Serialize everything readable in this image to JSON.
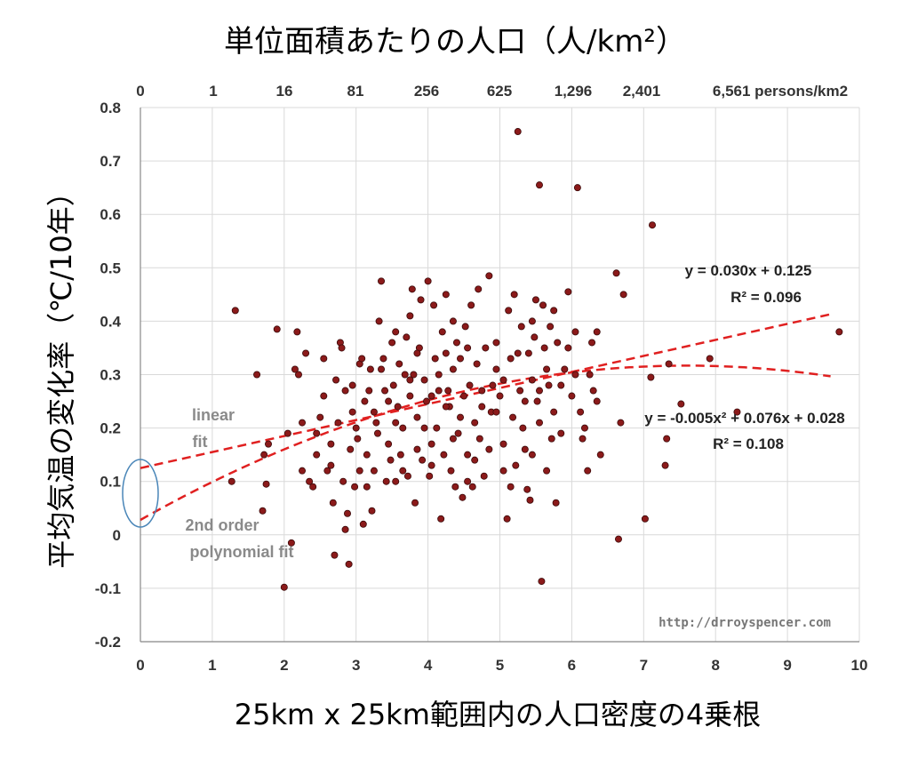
{
  "chart_data": {
    "type": "scatter",
    "title": "単位面積あたりの人口",
    "title_unit": "（人/km²）",
    "xlabel": "25km x 25km範囲内の人口密度の4乗根",
    "ylabel": "平均気温の変化率（℃/10年）",
    "xlim": [
      0,
      10
    ],
    "ylim": [
      -0.2,
      0.8
    ],
    "x_ticks": [
      "0",
      "1",
      "2",
      "3",
      "4",
      "5",
      "6",
      "7",
      "8",
      "9",
      "10"
    ],
    "y_ticks": [
      "-0.2",
      "-0.1",
      "0",
      "0.1",
      "0.2",
      "0.3",
      "0.4",
      "0.5",
      "0.6",
      "0.7",
      "0.8"
    ],
    "top_axis_ticks": [
      "0",
      "1",
      "16",
      "81",
      "256",
      "625",
      "1,296",
      "2,401",
      "6,561 persons/km2"
    ],
    "grid": true,
    "marker_color": "#8B1A1A",
    "fit_color": "#E02020",
    "annotation_color": "#4a86b8",
    "linear_fit": {
      "slope": 0.03,
      "intercept": 0.125,
      "equation": "y = 0.030x + 0.125",
      "r2": "R² = 0.096",
      "label_line1": "linear",
      "label_line2": "fit"
    },
    "poly_fit": {
      "a": -0.005,
      "b": 0.076,
      "c": 0.028,
      "equation": "y = -0.005x² + 0.076x + 0.028",
      "r2": "R² = 0.108",
      "label_line1": "2nd order",
      "label_line2": "polynomial fit"
    },
    "credit": "http://drroyspencer.com",
    "points": [
      [
        1.32,
        0.42
      ],
      [
        1.27,
        0.1
      ],
      [
        1.62,
        0.3
      ],
      [
        1.7,
        0.045
      ],
      [
        1.72,
        0.15
      ],
      [
        1.75,
        0.095
      ],
      [
        1.78,
        0.17
      ],
      [
        1.9,
        0.385
      ],
      [
        2.0,
        -0.098
      ],
      [
        2.1,
        -0.015
      ],
      [
        2.05,
        0.19
      ],
      [
        2.15,
        0.31
      ],
      [
        2.18,
        0.38
      ],
      [
        2.2,
        0.3
      ],
      [
        2.25,
        0.21
      ],
      [
        2.3,
        0.34
      ],
      [
        2.35,
        0.1
      ],
      [
        2.4,
        0.09
      ],
      [
        2.45,
        0.15
      ],
      [
        2.5,
        0.22
      ],
      [
        2.55,
        0.26
      ],
      [
        2.6,
        0.12
      ],
      [
        2.65,
        0.13
      ],
      [
        2.68,
        0.06
      ],
      [
        2.7,
        -0.038
      ],
      [
        2.72,
        0.29
      ],
      [
        2.75,
        0.21
      ],
      [
        2.78,
        0.36
      ],
      [
        2.8,
        0.35
      ],
      [
        2.82,
        0.1
      ],
      [
        2.85,
        0.01
      ],
      [
        2.88,
        0.04
      ],
      [
        2.9,
        -0.055
      ],
      [
        2.92,
        0.16
      ],
      [
        2.95,
        0.23
      ],
      [
        2.98,
        0.09
      ],
      [
        3.0,
        0.2
      ],
      [
        3.02,
        0.18
      ],
      [
        3.05,
        0.32
      ],
      [
        3.08,
        0.33
      ],
      [
        3.1,
        0.02
      ],
      [
        3.12,
        0.25
      ],
      [
        3.15,
        0.15
      ],
      [
        3.18,
        0.27
      ],
      [
        3.2,
        0.31
      ],
      [
        3.22,
        0.045
      ],
      [
        3.25,
        0.12
      ],
      [
        3.28,
        0.21
      ],
      [
        3.3,
        0.19
      ],
      [
        3.32,
        0.4
      ],
      [
        3.35,
        0.475
      ],
      [
        3.38,
        0.33
      ],
      [
        3.4,
        0.27
      ],
      [
        3.42,
        0.1
      ],
      [
        3.45,
        0.25
      ],
      [
        3.48,
        0.14
      ],
      [
        3.5,
        0.36
      ],
      [
        3.52,
        0.28
      ],
      [
        3.55,
        0.38
      ],
      [
        3.58,
        0.24
      ],
      [
        3.6,
        0.32
      ],
      [
        3.62,
        0.15
      ],
      [
        3.65,
        0.2
      ],
      [
        3.68,
        0.3
      ],
      [
        3.7,
        0.37
      ],
      [
        3.72,
        0.11
      ],
      [
        3.75,
        0.26
      ],
      [
        3.78,
        0.46
      ],
      [
        3.8,
        0.3
      ],
      [
        3.82,
        0.06
      ],
      [
        3.85,
        0.22
      ],
      [
        3.88,
        0.35
      ],
      [
        3.9,
        0.44
      ],
      [
        3.92,
        0.14
      ],
      [
        3.95,
        0.29
      ],
      [
        3.98,
        0.25
      ],
      [
        4.0,
        0.475
      ],
      [
        4.02,
        0.11
      ],
      [
        4.05,
        0.17
      ],
      [
        4.08,
        0.43
      ],
      [
        4.1,
        0.33
      ],
      [
        4.12,
        0.2
      ],
      [
        4.15,
        0.27
      ],
      [
        4.18,
        0.03
      ],
      [
        4.2,
        0.38
      ],
      [
        4.22,
        0.15
      ],
      [
        4.25,
        0.45
      ],
      [
        4.28,
        0.27
      ],
      [
        4.3,
        0.24
      ],
      [
        4.32,
        0.12
      ],
      [
        4.35,
        0.31
      ],
      [
        4.38,
        0.09
      ],
      [
        4.4,
        0.36
      ],
      [
        4.42,
        0.19
      ],
      [
        4.45,
        0.33
      ],
      [
        4.48,
        0.07
      ],
      [
        4.5,
        0.26
      ],
      [
        4.52,
        0.39
      ],
      [
        4.55,
        0.15
      ],
      [
        4.58,
        0.28
      ],
      [
        4.6,
        0.43
      ],
      [
        4.62,
        0.09
      ],
      [
        4.65,
        0.21
      ],
      [
        4.68,
        0.32
      ],
      [
        4.7,
        0.46
      ],
      [
        4.72,
        0.18
      ],
      [
        4.75,
        0.27
      ],
      [
        4.78,
        0.11
      ],
      [
        4.8,
        0.35
      ],
      [
        4.85,
        0.485
      ],
      [
        4.88,
        0.23
      ],
      [
        4.9,
        0.28
      ],
      [
        4.95,
        0.31
      ],
      [
        5.0,
        0.26
      ],
      [
        5.05,
        0.17
      ],
      [
        5.1,
        0.03
      ],
      [
        5.12,
        0.42
      ],
      [
        5.15,
        0.33
      ],
      [
        5.18,
        0.22
      ],
      [
        5.2,
        0.45
      ],
      [
        5.22,
        0.13
      ],
      [
        5.25,
        0.755
      ],
      [
        5.28,
        0.27
      ],
      [
        5.3,
        0.39
      ],
      [
        5.32,
        0.2
      ],
      [
        5.35,
        0.16
      ],
      [
        5.38,
        0.085
      ],
      [
        5.4,
        0.34
      ],
      [
        5.42,
        0.065
      ],
      [
        5.45,
        0.29
      ],
      [
        5.48,
        0.37
      ],
      [
        5.5,
        0.44
      ],
      [
        5.52,
        0.25
      ],
      [
        5.55,
        0.655
      ],
      [
        5.58,
        -0.087
      ],
      [
        5.6,
        0.43
      ],
      [
        5.62,
        0.35
      ],
      [
        5.65,
        0.12
      ],
      [
        5.68,
        0.28
      ],
      [
        5.7,
        0.39
      ],
      [
        5.72,
        0.18
      ],
      [
        5.75,
        0.42
      ],
      [
        5.78,
        0.06
      ],
      [
        5.8,
        0.36
      ],
      [
        5.85,
        0.19
      ],
      [
        5.9,
        0.31
      ],
      [
        5.95,
        0.455
      ],
      [
        6.0,
        0.26
      ],
      [
        6.05,
        0.38
      ],
      [
        6.08,
        0.65
      ],
      [
        6.12,
        0.23
      ],
      [
        6.18,
        0.2
      ],
      [
        6.22,
        0.12
      ],
      [
        6.25,
        0.3
      ],
      [
        6.28,
        0.36
      ],
      [
        6.3,
        0.27
      ],
      [
        6.35,
        0.38
      ],
      [
        6.4,
        0.15
      ],
      [
        6.62,
        0.49
      ],
      [
        6.65,
        -0.008
      ],
      [
        6.68,
        0.21
      ],
      [
        6.72,
        0.45
      ],
      [
        7.02,
        0.03
      ],
      [
        7.1,
        0.295
      ],
      [
        7.12,
        0.58
      ],
      [
        7.3,
        0.13
      ],
      [
        7.32,
        0.18
      ],
      [
        7.35,
        0.32
      ],
      [
        7.52,
        0.245
      ],
      [
        7.92,
        0.33
      ],
      [
        8.3,
        0.23
      ],
      [
        9.72,
        0.38
      ],
      [
        3.05,
        0.12
      ],
      [
        3.55,
        0.21
      ],
      [
        3.85,
        0.16
      ],
      [
        4.15,
        0.3
      ],
      [
        4.45,
        0.22
      ],
      [
        4.75,
        0.24
      ],
      [
        5.05,
        0.29
      ],
      [
        5.35,
        0.25
      ],
      [
        5.65,
        0.31
      ],
      [
        3.25,
        0.23
      ],
      [
        3.45,
        0.17
      ],
      [
        3.75,
        0.29
      ],
      [
        4.05,
        0.26
      ],
      [
        4.35,
        0.18
      ],
      [
        4.65,
        0.14
      ],
      [
        4.95,
        0.23
      ],
      [
        5.25,
        0.34
      ],
      [
        5.55,
        0.21
      ],
      [
        5.85,
        0.28
      ],
      [
        2.95,
        0.28
      ],
      [
        2.65,
        0.17
      ],
      [
        2.45,
        0.19
      ],
      [
        2.25,
        0.12
      ],
      [
        3.15,
        0.09
      ],
      [
        3.65,
        0.12
      ],
      [
        3.95,
        0.2
      ],
      [
        4.25,
        0.24
      ],
      [
        4.55,
        0.35
      ],
      [
        4.85,
        0.16
      ],
      [
        5.15,
        0.09
      ],
      [
        5.45,
        0.15
      ],
      [
        5.75,
        0.23
      ],
      [
        6.05,
        0.3
      ],
      [
        3.35,
        0.31
      ],
      [
        3.85,
        0.34
      ],
      [
        4.35,
        0.4
      ],
      [
        4.95,
        0.36
      ],
      [
        5.45,
        0.4
      ],
      [
        5.95,
        0.35
      ],
      [
        6.15,
        0.18
      ],
      [
        2.55,
        0.33
      ],
      [
        2.85,
        0.27
      ],
      [
        3.55,
        0.1
      ],
      [
        4.05,
        0.13
      ],
      [
        4.55,
        0.1
      ],
      [
        5.05,
        0.12
      ],
      [
        5.55,
        0.27
      ],
      [
        6.35,
        0.25
      ],
      [
        3.75,
        0.41
      ],
      [
        4.25,
        0.34
      ]
    ]
  }
}
